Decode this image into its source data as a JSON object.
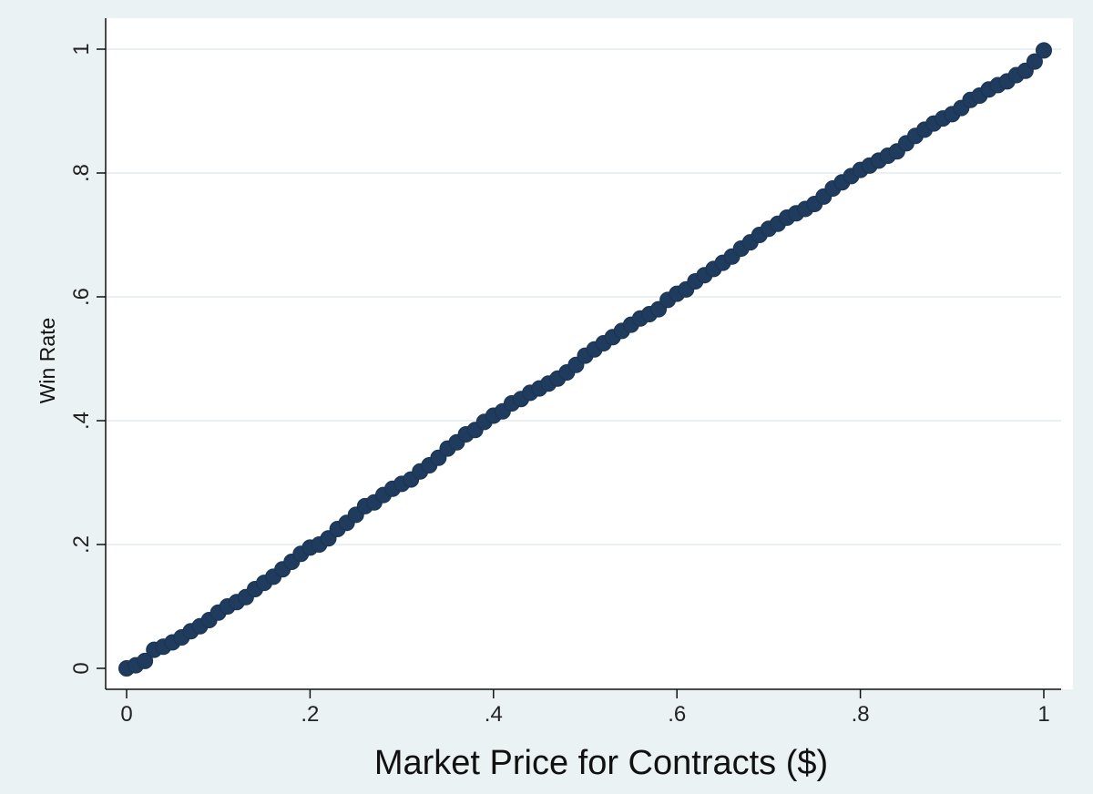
{
  "chart_data": {
    "type": "scatter",
    "title": "",
    "xlabel": "Market Price for Contracts ($)",
    "ylabel": "Win Rate",
    "xlim": [
      0,
      1
    ],
    "ylim": [
      0,
      1
    ],
    "x_ticks": [
      0,
      0.2,
      0.4,
      0.6,
      0.8,
      1
    ],
    "x_tick_labels": [
      "0",
      ".2",
      ".4",
      ".6",
      ".8",
      "1"
    ],
    "y_ticks": [
      0,
      0.2,
      0.4,
      0.6,
      0.8,
      1
    ],
    "y_tick_labels": [
      "0",
      ".2",
      ".4",
      ".6",
      ".8",
      "1"
    ],
    "grid": "horizontal",
    "legend": "none",
    "series": [
      {
        "color": "#1f3c5e",
        "x": [
          0.0,
          0.01,
          0.02,
          0.03,
          0.04,
          0.05,
          0.06,
          0.07,
          0.08,
          0.09,
          0.1,
          0.11,
          0.12,
          0.13,
          0.14,
          0.15,
          0.16,
          0.17,
          0.18,
          0.19,
          0.2,
          0.21,
          0.22,
          0.23,
          0.24,
          0.25,
          0.26,
          0.27,
          0.28,
          0.29,
          0.3,
          0.31,
          0.32,
          0.33,
          0.34,
          0.35,
          0.36,
          0.37,
          0.38,
          0.39,
          0.4,
          0.41,
          0.42,
          0.43,
          0.44,
          0.45,
          0.46,
          0.47,
          0.48,
          0.49,
          0.5,
          0.51,
          0.52,
          0.53,
          0.54,
          0.55,
          0.56,
          0.57,
          0.58,
          0.59,
          0.6,
          0.61,
          0.62,
          0.63,
          0.64,
          0.65,
          0.66,
          0.67,
          0.68,
          0.69,
          0.7,
          0.71,
          0.72,
          0.73,
          0.74,
          0.75,
          0.76,
          0.77,
          0.78,
          0.79,
          0.8,
          0.81,
          0.82,
          0.83,
          0.84,
          0.85,
          0.86,
          0.87,
          0.88,
          0.89,
          0.9,
          0.91,
          0.92,
          0.93,
          0.94,
          0.95,
          0.96,
          0.97,
          0.98,
          0.99,
          1.0
        ],
        "y": [
          0.0,
          0.005,
          0.012,
          0.03,
          0.035,
          0.042,
          0.05,
          0.06,
          0.068,
          0.078,
          0.09,
          0.1,
          0.107,
          0.115,
          0.128,
          0.138,
          0.148,
          0.16,
          0.172,
          0.185,
          0.195,
          0.2,
          0.21,
          0.225,
          0.235,
          0.248,
          0.262,
          0.268,
          0.28,
          0.29,
          0.298,
          0.305,
          0.318,
          0.328,
          0.34,
          0.355,
          0.365,
          0.378,
          0.385,
          0.398,
          0.408,
          0.415,
          0.428,
          0.435,
          0.445,
          0.452,
          0.46,
          0.468,
          0.478,
          0.49,
          0.505,
          0.515,
          0.525,
          0.535,
          0.545,
          0.555,
          0.565,
          0.572,
          0.58,
          0.595,
          0.605,
          0.612,
          0.625,
          0.635,
          0.645,
          0.655,
          0.665,
          0.678,
          0.688,
          0.7,
          0.71,
          0.718,
          0.728,
          0.735,
          0.742,
          0.75,
          0.762,
          0.775,
          0.785,
          0.795,
          0.805,
          0.812,
          0.82,
          0.828,
          0.835,
          0.848,
          0.86,
          0.87,
          0.88,
          0.888,
          0.895,
          0.905,
          0.918,
          0.925,
          0.935,
          0.942,
          0.948,
          0.958,
          0.965,
          0.98,
          0.998
        ]
      }
    ]
  }
}
